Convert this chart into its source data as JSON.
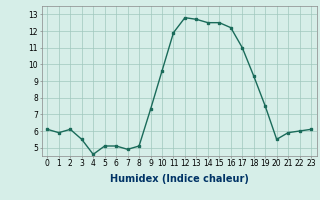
{
  "x": [
    0,
    1,
    2,
    3,
    4,
    5,
    6,
    7,
    8,
    9,
    10,
    11,
    12,
    13,
    14,
    15,
    16,
    17,
    18,
    19,
    20,
    21,
    22,
    23
  ],
  "y": [
    6.1,
    5.9,
    6.1,
    5.5,
    4.6,
    5.1,
    5.1,
    4.9,
    5.1,
    7.3,
    9.6,
    11.9,
    12.8,
    12.7,
    12.5,
    12.5,
    12.2,
    11.0,
    9.3,
    7.5,
    5.5,
    5.9,
    6.0,
    6.1
  ],
  "line_color": "#1a6b5a",
  "marker": "s",
  "marker_size": 1.8,
  "bg_color": "#d6eee8",
  "grid_color": "#a0c8be",
  "xlabel": "Humidex (Indice chaleur)",
  "xlabel_fontsize": 7,
  "ytick_vals": [
    5,
    6,
    7,
    8,
    9,
    10,
    11,
    12,
    13
  ],
  "xtick_labels": [
    "0",
    "1",
    "2",
    "3",
    "4",
    "5",
    "6",
    "7",
    "8",
    "9",
    "10",
    "11",
    "12",
    "13",
    "14",
    "15",
    "16",
    "17",
    "18",
    "19",
    "20",
    "21",
    "22",
    "23"
  ],
  "tick_fontsize": 5.5,
  "line_width": 1.0
}
